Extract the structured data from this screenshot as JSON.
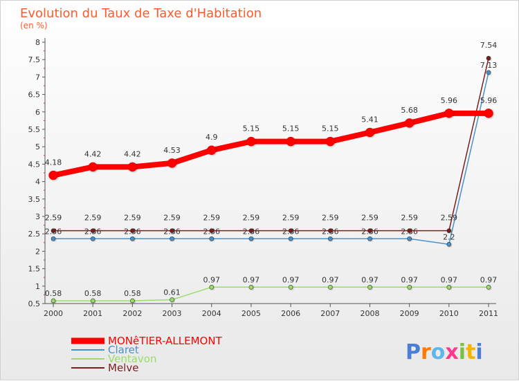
{
  "chart_data": {
    "type": "line",
    "title": "Evolution du Taux de Taxe d'Habitation",
    "subtitle": "(en %)",
    "x": [
      "2000",
      "2001",
      "2002",
      "2003",
      "2004",
      "2005",
      "2006",
      "2007",
      "2008",
      "2009",
      "2010",
      "2011"
    ],
    "yticks": [
      "0.5",
      "1",
      "1.5",
      "2",
      "2.5",
      "3",
      "3.5",
      "4",
      "4.5",
      "5",
      "5.5",
      "6",
      "6.5",
      "7",
      "7.5",
      "8"
    ],
    "ylim": [
      0.5,
      8
    ],
    "grid": false,
    "legend_position": "bottom-left",
    "series": [
      {
        "name": "MONêTIER-ALLEMONT",
        "color": "#ff0000",
        "values": [
          4.18,
          4.42,
          4.42,
          4.53,
          4.9,
          5.15,
          5.15,
          5.15,
          5.41,
          5.68,
          5.96,
          5.96
        ],
        "labels": [
          "4.18",
          "4.42",
          "4.42",
          "4.53",
          "4.9",
          "5.15",
          "5.15",
          "5.15",
          "5.41",
          "5.68",
          "5.96",
          "5.96"
        ]
      },
      {
        "name": "Claret",
        "color": "#4a90c8",
        "values": [
          2.36,
          2.36,
          2.36,
          2.36,
          2.36,
          2.36,
          2.36,
          2.36,
          2.36,
          2.36,
          2.2,
          7.13
        ],
        "labels": [
          "2.36",
          "2.36",
          "2.36",
          "2.36",
          "2.36",
          "2.36",
          "2.36",
          "2.36",
          "2.36",
          "2.36",
          "2.2",
          "7.13"
        ]
      },
      {
        "name": "Ventavon",
        "color": "#99dd66",
        "values": [
          0.58,
          0.58,
          0.58,
          0.61,
          0.97,
          0.97,
          0.97,
          0.97,
          0.97,
          0.97,
          0.97,
          0.97
        ],
        "labels": [
          "0.58",
          "0.58",
          "0.58",
          "0.61",
          "0.97",
          "0.97",
          "0.97",
          "0.97",
          "0.97",
          "0.97",
          "0.97",
          "0.97"
        ]
      },
      {
        "name": "Melve",
        "color": "#7a1e1e",
        "values": [
          2.59,
          2.59,
          2.59,
          2.59,
          2.59,
          2.59,
          2.59,
          2.59,
          2.59,
          2.59,
          2.59,
          7.54
        ],
        "labels": [
          "2.59",
          "2.59",
          "2.59",
          "2.59",
          "2.59",
          "2.59",
          "2.59",
          "2.59",
          "2.59",
          "2.59",
          "2.59",
          "7.54"
        ]
      }
    ]
  },
  "logo": {
    "text": "Proxiti"
  }
}
